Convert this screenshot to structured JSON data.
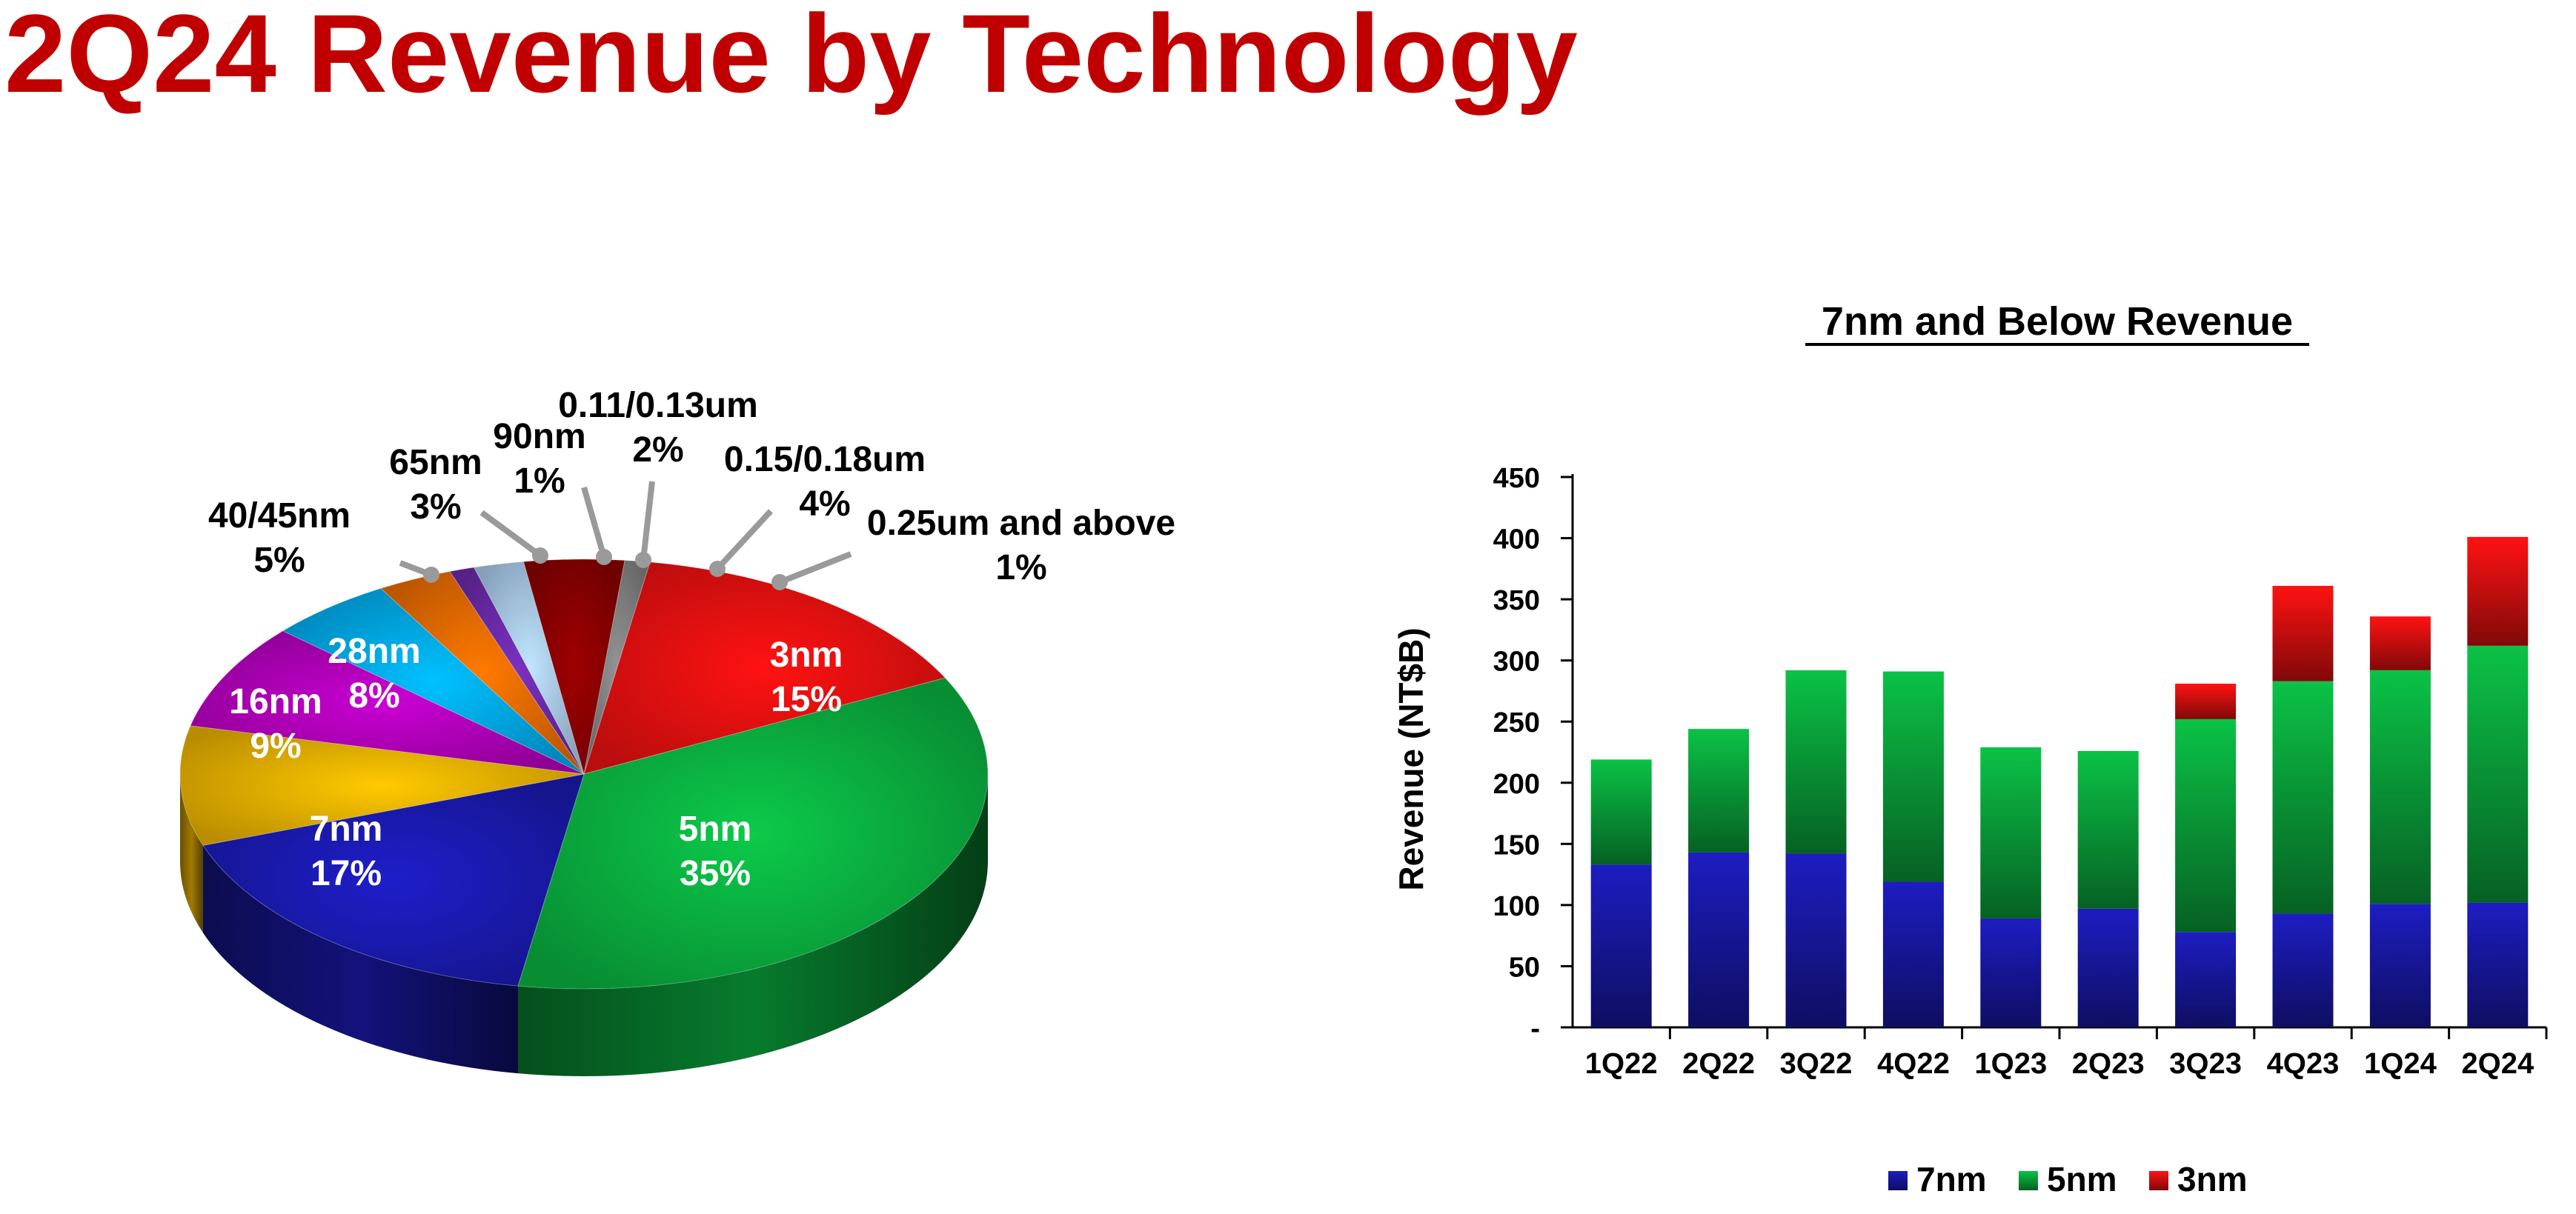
{
  "page": {
    "title": "2Q24 Revenue by Technology"
  },
  "colors": {
    "title": "#c00000",
    "7nm": "#1a1ab0",
    "5nm": "#0ab040",
    "3nm": "#e81010",
    "16nm": "#e8b000",
    "28nm": "#b000b8",
    "40/45nm": "#00a8e8",
    "65nm": "#e86a00",
    "90nm": "#6a2aa8",
    "0.11/0.13um": "#a8c8e8",
    "0.15/0.18um": "#8a0000",
    "0.25um and above": "#808080"
  },
  "chart_data": [
    {
      "type": "pie",
      "title": "",
      "slices": [
        {
          "name": "3nm",
          "label": "3nm",
          "pct_label": "15%",
          "value": 15
        },
        {
          "name": "5nm",
          "label": "5nm",
          "pct_label": "35%",
          "value": 35
        },
        {
          "name": "7nm",
          "label": "7nm",
          "pct_label": "17%",
          "value": 17
        },
        {
          "name": "16nm",
          "label": "16nm",
          "pct_label": "9%",
          "value": 9
        },
        {
          "name": "28nm",
          "label": "28nm",
          "pct_label": "8%",
          "value": 8
        },
        {
          "name": "40/45nm",
          "label": "40/45nm",
          "pct_label": "5%",
          "value": 5
        },
        {
          "name": "65nm",
          "label": "65nm",
          "pct_label": "3%",
          "value": 3
        },
        {
          "name": "90nm",
          "label": "90nm",
          "pct_label": "1%",
          "value": 1
        },
        {
          "name": "0.11/0.13um",
          "label": "0.11/0.13um",
          "pct_label": "2%",
          "value": 2
        },
        {
          "name": "0.15/0.18um",
          "label": "0.15/0.18um",
          "pct_label": "4%",
          "value": 4
        },
        {
          "name": "0.25um and above",
          "label": "0.25um and above",
          "pct_label": "1%",
          "value": 1
        }
      ]
    },
    {
      "type": "bar",
      "stacked": true,
      "title": "7nm and Below Revenue",
      "xlabel": "",
      "ylabel": "Revenue (NT$B)",
      "ylim": [
        0,
        450
      ],
      "yticks": [
        0,
        50,
        100,
        150,
        200,
        250,
        300,
        350,
        400,
        450
      ],
      "ytick_labels": [
        "-",
        "50",
        "100",
        "150",
        "200",
        "250",
        "300",
        "350",
        "400",
        "450"
      ],
      "categories": [
        "1Q22",
        "2Q22",
        "3Q22",
        "4Q22",
        "1Q23",
        "2Q23",
        "3Q23",
        "4Q23",
        "1Q24",
        "2Q24"
      ],
      "series": [
        {
          "name": "7nm",
          "values": [
            133,
            143,
            142,
            119,
            89,
            97,
            78,
            93,
            101,
            102
          ]
        },
        {
          "name": "5nm",
          "values": [
            86,
            101,
            150,
            172,
            140,
            129,
            174,
            190,
            191,
            210
          ]
        },
        {
          "name": "3nm",
          "values": [
            0,
            0,
            0,
            0,
            0,
            0,
            29,
            78,
            44,
            89
          ]
        }
      ],
      "legend": "bottom",
      "grid": false
    }
  ]
}
